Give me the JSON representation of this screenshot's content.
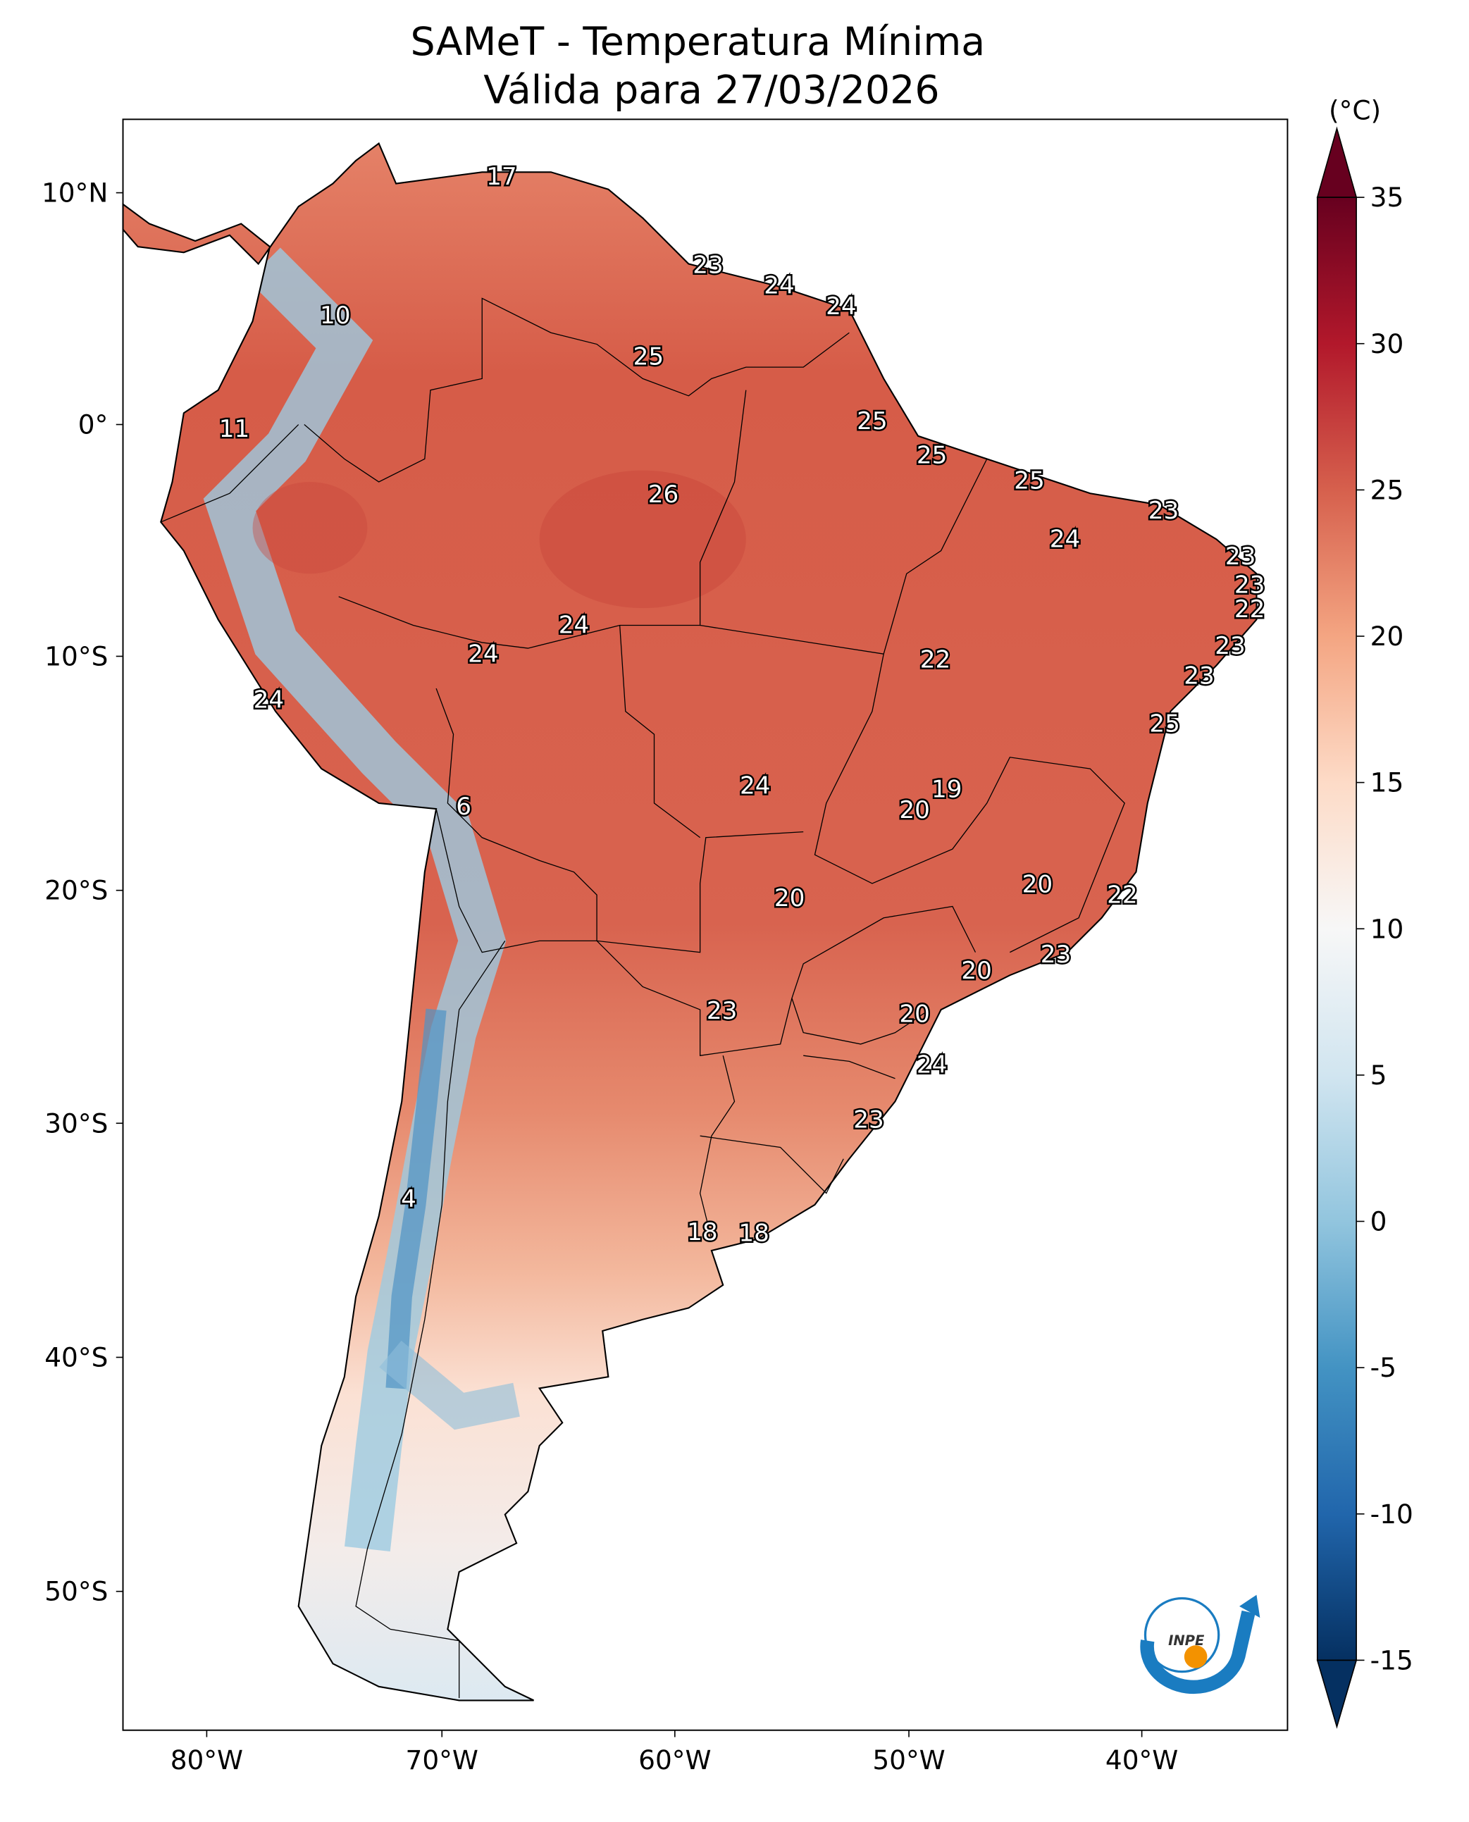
{
  "title": {
    "line1": "SAMeT - Temperatura Mínima",
    "line2": "Válida para 27/03/2026"
  },
  "colorbar": {
    "unit": "(°C)",
    "ticks": [
      "35",
      "30",
      "25",
      "20",
      "15",
      "10",
      "5",
      "0",
      "-5",
      "-10",
      "-15"
    ],
    "range": [
      -15,
      35
    ],
    "colors": [
      "#053061",
      "#2166ac",
      "#4393c3",
      "#92c5de",
      "#d1e5f0",
      "#f7f7f7",
      "#fddbc7",
      "#f4a582",
      "#d6604d",
      "#b2182b",
      "#67001f"
    ]
  },
  "axes": {
    "lon_ticks": [
      "80°W",
      "70°W",
      "60°W",
      "50°W",
      "40°W"
    ],
    "lat_ticks": [
      "10°N",
      "0°",
      "10°S",
      "20°S",
      "30°S",
      "40°S",
      "50°S"
    ]
  },
  "station_values": [
    "17",
    "23",
    "24",
    "24",
    "10",
    "25",
    "25",
    "11",
    "25",
    "25",
    "26",
    "23",
    "24",
    "23",
    "23",
    "22",
    "24",
    "22",
    "23",
    "24",
    "23",
    "24",
    "25",
    "24",
    "19",
    "6",
    "20",
    "20",
    "22",
    "20",
    "23",
    "20",
    "23",
    "20",
    "24",
    "23",
    "4",
    "18",
    "18"
  ],
  "logo": "INPE"
}
